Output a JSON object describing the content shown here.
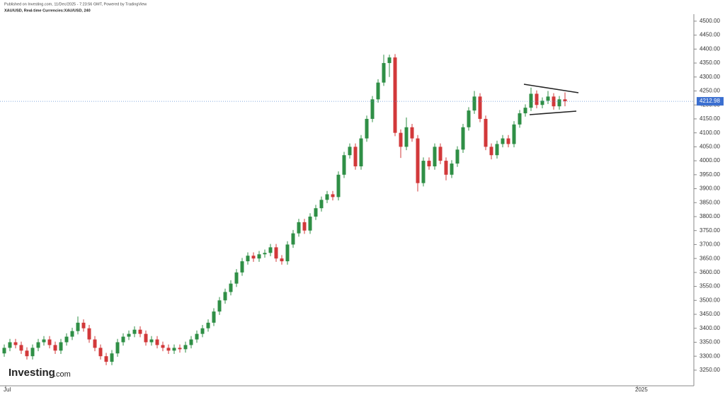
{
  "header": {
    "published": "Published on Investing.com, 11/Dec/2025 - 7:23:56 GMT, Powered by TradingView",
    "symbol": "XAU/USD, Real-time Currencies:XAU/USD, 240"
  },
  "logo": {
    "brand": "Investing",
    "suffix": ".com"
  },
  "chart_data": {
    "type": "candlestick",
    "open": [
      3310,
      3330,
      3350,
      3340,
      3320,
      3300,
      3330,
      3350,
      3360,
      3340,
      3320,
      3350,
      3370,
      3390,
      3420,
      3400,
      3360,
      3330,
      3300,
      3280,
      3310,
      3350,
      3370,
      3380,
      3395,
      3380,
      3350,
      3360,
      3340,
      3330,
      3320,
      3330,
      3325,
      3340,
      3360,
      3380,
      3400,
      3420,
      3460,
      3500,
      3530,
      3560,
      3600,
      3640,
      3660,
      3650,
      3665,
      3670,
      3690,
      3650,
      3640,
      3700,
      3740,
      3780,
      3750,
      3800,
      3830,
      3860,
      3880,
      3870,
      3950,
      4020,
      4050,
      3980,
      4080,
      4150,
      4220,
      4280,
      4350,
      4370,
      4100,
      4050,
      4120,
      4080,
      3920,
      4000,
      3980,
      4050,
      4000,
      3950,
      3990,
      4040,
      4120,
      4180,
      4230,
      4150,
      4050,
      4020,
      4060,
      4080,
      4060,
      4130,
      4170,
      4190,
      4240,
      4200,
      4215,
      4230,
      4195,
      4220
    ],
    "high": [
      3342,
      3362,
      3362,
      3352,
      3332,
      3342,
      3362,
      3372,
      3372,
      3352,
      3362,
      3382,
      3402,
      3442,
      3432,
      3412,
      3372,
      3342,
      3312,
      3322,
      3362,
      3382,
      3392,
      3407,
      3407,
      3392,
      3372,
      3372,
      3352,
      3342,
      3342,
      3342,
      3352,
      3372,
      3392,
      3412,
      3432,
      3472,
      3512,
      3542,
      3572,
      3612,
      3652,
      3672,
      3672,
      3677,
      3682,
      3702,
      3702,
      3662,
      3712,
      3752,
      3792,
      3792,
      3812,
      3842,
      3872,
      3892,
      3892,
      3962,
      4032,
      4062,
      4062,
      4092,
      4162,
      4232,
      4292,
      4380,
      4380,
      4382,
      4112,
      4155,
      4132,
      4092,
      4012,
      4012,
      4062,
      4062,
      4012,
      4002,
      4052,
      4132,
      4192,
      4250,
      4242,
      4162,
      4062,
      4072,
      4092,
      4092,
      4142,
      4182,
      4202,
      4262,
      4252,
      4227,
      4250,
      4242,
      4232,
      4245
    ],
    "low": [
      3298,
      3318,
      3328,
      3308,
      3288,
      3288,
      3318,
      3338,
      3328,
      3308,
      3308,
      3338,
      3358,
      3378,
      3388,
      3348,
      3318,
      3288,
      3268,
      3268,
      3298,
      3338,
      3358,
      3368,
      3368,
      3338,
      3338,
      3328,
      3318,
      3308,
      3308,
      3313,
      3313,
      3328,
      3348,
      3368,
      3388,
      3408,
      3448,
      3488,
      3518,
      3548,
      3588,
      3628,
      3638,
      3638,
      3653,
      3658,
      3638,
      3628,
      3628,
      3688,
      3728,
      3738,
      3738,
      3788,
      3818,
      3848,
      3858,
      3858,
      3938,
      4008,
      3968,
      3968,
      4068,
      4138,
      4208,
      4268,
      4300,
      4088,
      4010,
      4038,
      4068,
      3890,
      3908,
      3968,
      3968,
      3988,
      3930,
      3938,
      3978,
      4028,
      4108,
      4168,
      4138,
      4038,
      4005,
      4008,
      4048,
      4048,
      4048,
      4118,
      4158,
      4178,
      4188,
      4188,
      4203,
      4183,
      4183,
      4195
    ],
    "close": [
      3330,
      3350,
      3340,
      3320,
      3300,
      3330,
      3350,
      3360,
      3340,
      3320,
      3350,
      3370,
      3390,
      3420,
      3400,
      3360,
      3330,
      3300,
      3280,
      3310,
      3350,
      3370,
      3380,
      3395,
      3380,
      3350,
      3360,
      3340,
      3330,
      3320,
      3330,
      3325,
      3340,
      3360,
      3380,
      3400,
      3420,
      3460,
      3500,
      3530,
      3560,
      3600,
      3640,
      3660,
      3650,
      3665,
      3670,
      3690,
      3650,
      3640,
      3700,
      3740,
      3780,
      3750,
      3800,
      3830,
      3860,
      3880,
      3870,
      3950,
      4020,
      4050,
      3980,
      4080,
      4150,
      4220,
      4280,
      4350,
      4370,
      4100,
      4050,
      4120,
      4080,
      3920,
      4000,
      3980,
      4050,
      4000,
      3950,
      3990,
      4040,
      4120,
      4180,
      4230,
      4150,
      4050,
      4020,
      4060,
      4080,
      4060,
      4130,
      4170,
      4190,
      4240,
      4200,
      4215,
      4230,
      4195,
      4220,
      4213
    ],
    "up_color": "#2f8f46",
    "down_color": "#d2383a",
    "ylim": [
      3194,
      4520
    ],
    "yticks": [
      {
        "value": 3250,
        "label": "3250.00"
      },
      {
        "value": 3300,
        "label": "3300.00"
      },
      {
        "value": 3350,
        "label": "3350.00"
      },
      {
        "value": 3400,
        "label": "3400.00"
      },
      {
        "value": 3450,
        "label": "3450.00"
      },
      {
        "value": 3500,
        "label": "3500.00"
      },
      {
        "value": 3550,
        "label": "3550.00"
      },
      {
        "value": 3600,
        "label": "3600.00"
      },
      {
        "value": 3650,
        "label": "3650.00"
      },
      {
        "value": 3700,
        "label": "3700.00"
      },
      {
        "value": 3750,
        "label": "3750.00"
      },
      {
        "value": 3800,
        "label": "3800.00"
      },
      {
        "value": 3850,
        "label": "3850.00"
      },
      {
        "value": 3900,
        "label": "3900.00"
      },
      {
        "value": 3950,
        "label": "3950.00"
      },
      {
        "value": 4000,
        "label": "4000.00"
      },
      {
        "value": 4050,
        "label": "4050.00"
      },
      {
        "value": 4100,
        "label": "4100.00"
      },
      {
        "value": 4150,
        "label": "4150.00"
      },
      {
        "value": 4200,
        "label": "4200.00"
      },
      {
        "value": 4250,
        "label": "4250.00"
      },
      {
        "value": 4300,
        "label": "4300.00"
      },
      {
        "value": 4350,
        "label": "4350.00"
      },
      {
        "value": 4400,
        "label": "4400.00"
      },
      {
        "value": 4450,
        "label": "4450.00"
      },
      {
        "value": 4500,
        "label": "4500.00"
      }
    ],
    "current_price": 4212.98,
    "x_labels": [
      "Jul",
      "2025"
    ],
    "grid": false
  }
}
